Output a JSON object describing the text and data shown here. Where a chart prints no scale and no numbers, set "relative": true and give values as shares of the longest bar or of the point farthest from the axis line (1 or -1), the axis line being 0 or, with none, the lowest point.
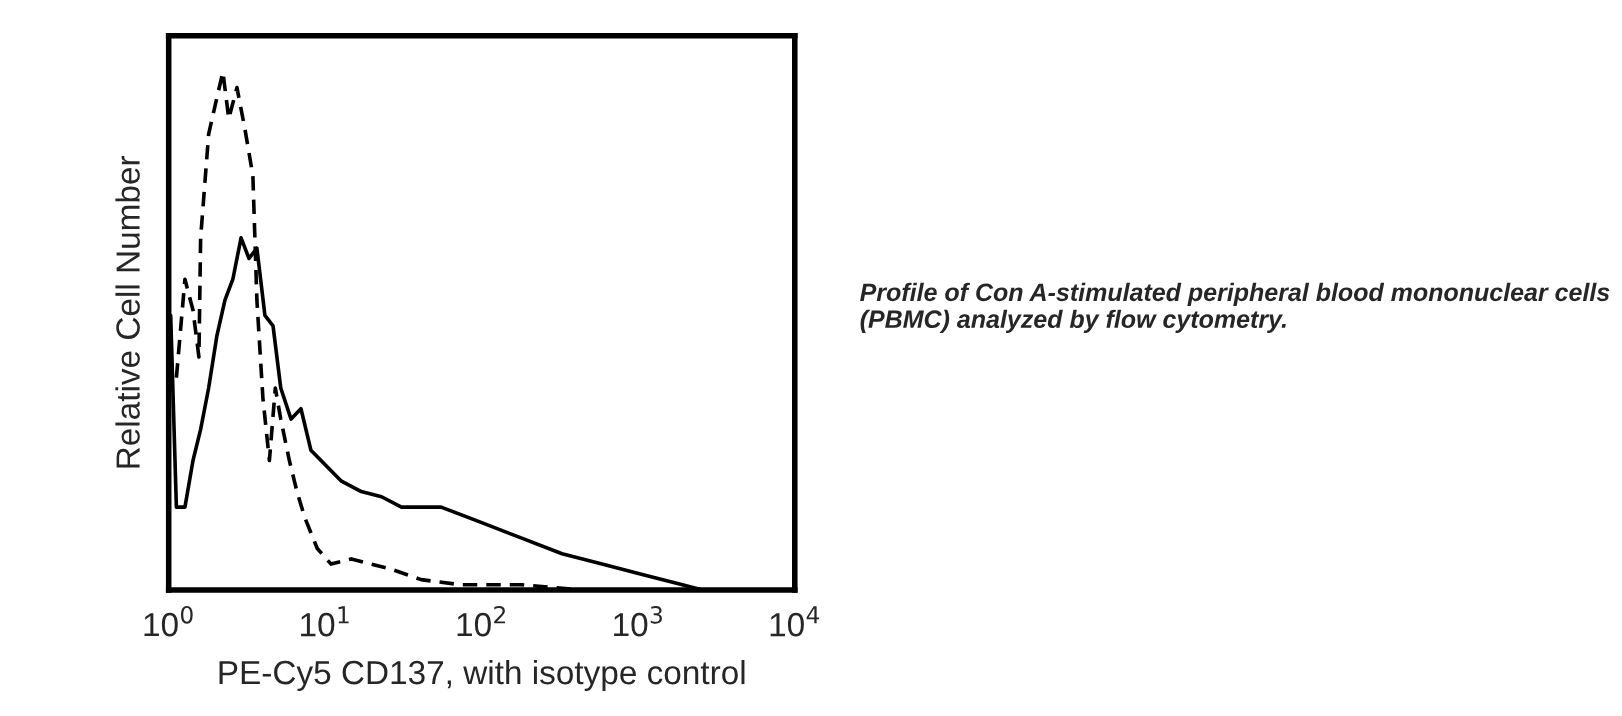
{
  "chart_data": {
    "type": "line",
    "relative": true,
    "log": "x",
    "xlabel": "PE-Cy5 CD137, with isotype control",
    "ylabel": "Relative Cell Number",
    "xlim": [
      1,
      10000
    ],
    "xticks": [
      {
        "value": 1,
        "label": "10$^{0}$"
      },
      {
        "value": 10,
        "label": "10$^{1}$"
      },
      {
        "value": 100,
        "label": "10$^{2}$"
      },
      {
        "value": 1000,
        "label": "10$^{3}$"
      },
      {
        "value": 10000,
        "label": "10$^{4}$"
      }
    ],
    "tick_labels": "x",
    "grid": false,
    "legend": false,
    "marker": "none",
    "annotations": [
      "Profile of Con A-stimulated peripheral blood mononuclear cells (PBMC) analyzed by flow cytometry."
    ],
    "series": [
      {
        "color": "#000000",
        "line_style": "dashed",
        "x": [
          1.12,
          1.27,
          1.43,
          1.56,
          1.6,
          1.8,
          2.03,
          2.22,
          2.42,
          2.73,
          3.07,
          3.45,
          3.66,
          4.0,
          4.4,
          4.8,
          5.2,
          5.9,
          6.6,
          7.4,
          8.9,
          10.9,
          14.7,
          19.7,
          26.5,
          41,
          74,
          180,
          440
        ],
        "values": [
          0.41,
          0.6,
          0.54,
          0.45,
          0.68,
          0.88,
          0.95,
          1.0,
          0.91,
          0.97,
          0.89,
          0.8,
          0.56,
          0.37,
          0.25,
          0.39,
          0.33,
          0.25,
          0.19,
          0.14,
          0.08,
          0.05,
          0.06,
          0.05,
          0.04,
          0.02,
          0.01,
          0.01,
          0.0
        ]
      },
      {
        "color": "#000000",
        "line_style": "solid",
        "x": [
          1.03,
          1.12,
          1.27,
          1.43,
          1.6,
          1.8,
          2.03,
          2.29,
          2.57,
          2.9,
          3.26,
          3.66,
          4.12,
          4.64,
          5.2,
          6.05,
          7.0,
          8.1,
          9.4,
          12.7,
          17.0,
          22.9,
          30.7,
          41,
          55,
          100,
          180,
          326,
          587,
          1060,
          1915,
          2570
        ],
        "values": [
          0.53,
          0.16,
          0.16,
          0.25,
          0.31,
          0.39,
          0.49,
          0.56,
          0.6,
          0.68,
          0.64,
          0.66,
          0.53,
          0.51,
          0.39,
          0.33,
          0.35,
          0.27,
          0.25,
          0.21,
          0.19,
          0.18,
          0.16,
          0.16,
          0.16,
          0.13,
          0.1,
          0.07,
          0.05,
          0.03,
          0.01,
          0.0
        ]
      }
    ]
  }
}
